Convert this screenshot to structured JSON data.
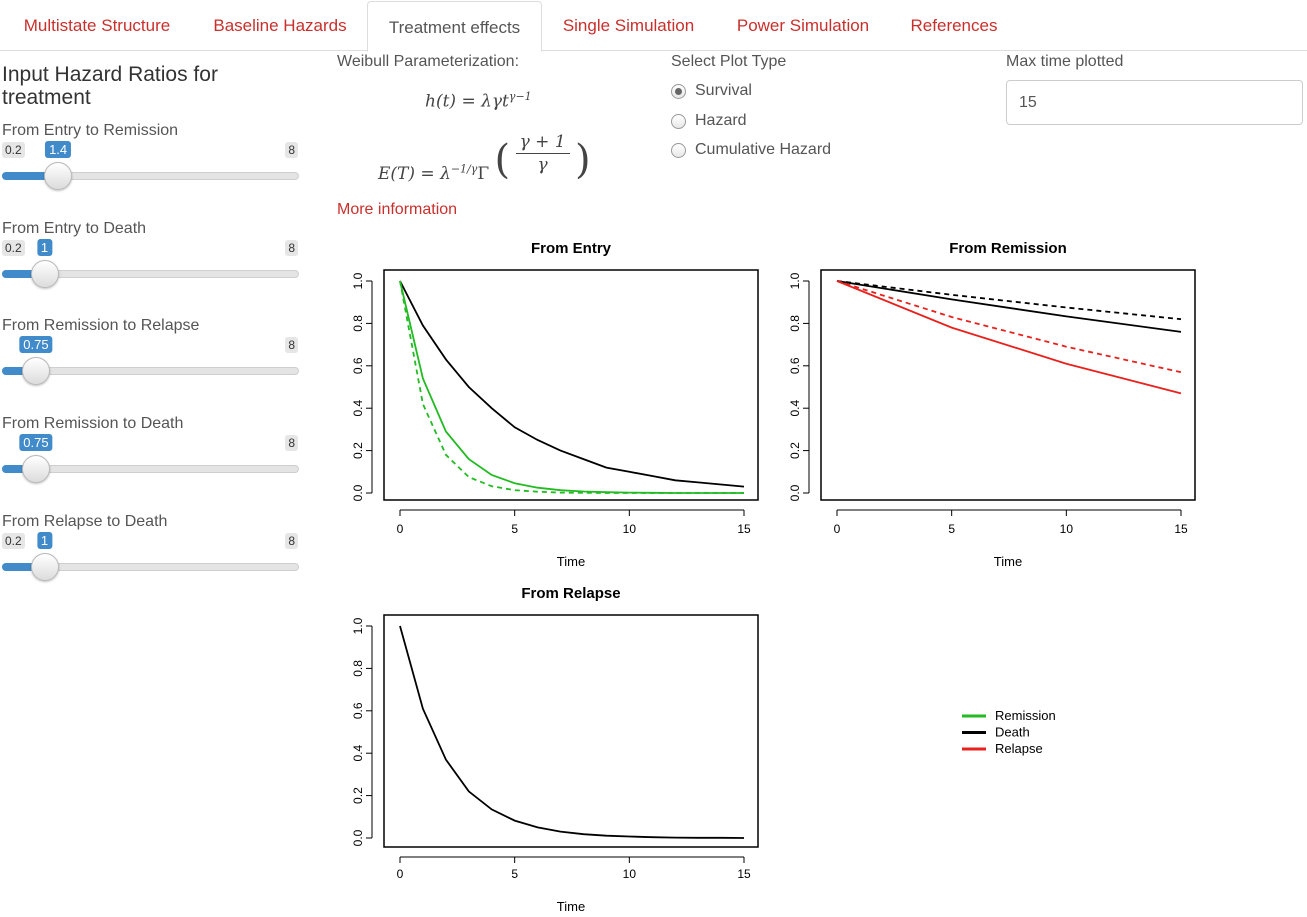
{
  "tabs": [
    {
      "label": "Multistate Structure"
    },
    {
      "label": "Baseline Hazards"
    },
    {
      "label": "Treatment effects"
    },
    {
      "label": "Single Simulation"
    },
    {
      "label": "Power Simulation"
    },
    {
      "label": "References"
    }
  ],
  "active_tab": "Treatment effects",
  "sidebar": {
    "title": "Input Hazard Ratios for treatment",
    "sliders": [
      {
        "label": "From Entry to Remission",
        "min": "0.2",
        "max": "8",
        "value": "1.4",
        "fraction": 0.154
      },
      {
        "label": "From Entry to Death",
        "min": "0.2",
        "max": "8",
        "value": "1",
        "fraction": 0.103
      },
      {
        "label": "From Remission to Relapse",
        "min": "",
        "max": "8",
        "value": "0.75",
        "fraction": 0.071
      },
      {
        "label": "From Remission to Death",
        "min": "",
        "max": "8",
        "value": "0.75",
        "fraction": 0.071
      },
      {
        "label": "From Relapse to Death",
        "min": "0.2",
        "max": "8",
        "value": "1",
        "fraction": 0.103
      }
    ]
  },
  "weibull": {
    "label": "Weibull Parameterization:"
  },
  "more_info": "More information",
  "plot_type": {
    "label": "Select Plot Type",
    "options": [
      {
        "label": "Survival",
        "checked": true
      },
      {
        "label": "Hazard",
        "checked": false
      },
      {
        "label": "Cumulative Hazard",
        "checked": false
      }
    ]
  },
  "max_time": {
    "label": "Max time plotted",
    "value": "15"
  },
  "colors": {
    "link": "#c9302c",
    "slider": "#428bca",
    "remission": "#22bb22",
    "death": "#000000",
    "relapse": "#e8211d"
  },
  "chart_data": [
    {
      "type": "line",
      "title": "From Entry",
      "xlabel": "Time",
      "ylabel": "",
      "xlim": [
        0,
        15
      ],
      "ylim": [
        0,
        1
      ],
      "x_ticks": [
        "0",
        "5",
        "10",
        "15"
      ],
      "y_ticks": [
        "0.0",
        "0.2",
        "0.4",
        "0.6",
        "0.8",
        "1.0"
      ],
      "series": [
        {
          "color": "#000000",
          "dash": false,
          "x": [
            0,
            1,
            2,
            3,
            4,
            5,
            6,
            7,
            8,
            9,
            10,
            11,
            12,
            13,
            14,
            15
          ],
          "y": [
            1.0,
            0.79,
            0.63,
            0.5,
            0.4,
            0.31,
            0.25,
            0.2,
            0.16,
            0.12,
            0.1,
            0.08,
            0.06,
            0.05,
            0.04,
            0.03
          ]
        },
        {
          "color": "#22bb22",
          "dash": false,
          "x": [
            0,
            1,
            2,
            3,
            4,
            5,
            6,
            7,
            8,
            9,
            10,
            11,
            12,
            13,
            14,
            15
          ],
          "y": [
            1.0,
            0.54,
            0.29,
            0.16,
            0.085,
            0.046,
            0.025,
            0.013,
            0.007,
            0.004,
            0.002,
            0.001,
            0.0,
            0.0,
            0.0,
            0.0
          ]
        },
        {
          "color": "#22bb22",
          "dash": true,
          "x": [
            0,
            1,
            2,
            3,
            4,
            5,
            6,
            7,
            8,
            9,
            10,
            11,
            12,
            13,
            14,
            15
          ],
          "y": [
            1.0,
            0.42,
            0.18,
            0.075,
            0.032,
            0.013,
            0.006,
            0.002,
            0.001,
            0.0,
            0.0,
            0.0,
            0.0,
            0.0,
            0.0,
            0.0
          ]
        }
      ]
    },
    {
      "type": "line",
      "title": "From Remission",
      "xlabel": "Time",
      "ylabel": "",
      "xlim": [
        0,
        15
      ],
      "ylim": [
        0,
        1
      ],
      "x_ticks": [
        "0",
        "5",
        "10",
        "15"
      ],
      "y_ticks": [
        "0.0",
        "0.2",
        "0.4",
        "0.6",
        "0.8",
        "1.0"
      ],
      "series": [
        {
          "color": "#000000",
          "dash": true,
          "x": [
            0,
            5,
            10,
            15
          ],
          "y": [
            1.0,
            0.935,
            0.875,
            0.82
          ]
        },
        {
          "color": "#000000",
          "dash": false,
          "x": [
            0,
            5,
            10,
            15
          ],
          "y": [
            1.0,
            0.913,
            0.833,
            0.76
          ]
        },
        {
          "color": "#e8211d",
          "dash": true,
          "x": [
            0,
            5,
            10,
            15
          ],
          "y": [
            1.0,
            0.83,
            0.69,
            0.57
          ]
        },
        {
          "color": "#e8211d",
          "dash": false,
          "x": [
            0,
            5,
            10,
            15
          ],
          "y": [
            1.0,
            0.78,
            0.61,
            0.47
          ]
        }
      ]
    },
    {
      "type": "line",
      "title": "From Relapse",
      "xlabel": "Time",
      "ylabel": "",
      "xlim": [
        0,
        15
      ],
      "ylim": [
        0,
        1
      ],
      "x_ticks": [
        "0",
        "5",
        "10",
        "15"
      ],
      "y_ticks": [
        "0.0",
        "0.2",
        "0.4",
        "0.6",
        "0.8",
        "1.0"
      ],
      "series": [
        {
          "color": "#000000",
          "dash": false,
          "x": [
            0,
            1,
            2,
            3,
            4,
            5,
            6,
            7,
            8,
            9,
            10,
            11,
            12,
            13,
            14,
            15
          ],
          "y": [
            1.0,
            0.61,
            0.37,
            0.22,
            0.135,
            0.082,
            0.05,
            0.03,
            0.018,
            0.011,
            0.007,
            0.004,
            0.002,
            0.001,
            0.001,
            0.0
          ]
        }
      ]
    }
  ],
  "legend": [
    {
      "name": "Remission",
      "color": "#22bb22"
    },
    {
      "name": "Death",
      "color": "#000000"
    },
    {
      "name": "Relapse",
      "color": "#e8211d"
    }
  ]
}
